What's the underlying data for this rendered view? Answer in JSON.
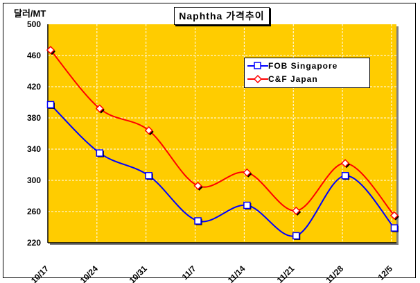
{
  "chart_data": {
    "type": "line",
    "title": "Naphtha 가격추이",
    "ylabel": "달러/MT",
    "xlabel": "",
    "categories": [
      "10/17",
      "10/24",
      "10/31",
      "11/7",
      "11/14",
      "11/21",
      "11/28",
      "12/5"
    ],
    "ylim": [
      220,
      500
    ],
    "yticks": [
      220,
      260,
      300,
      340,
      380,
      420,
      460,
      500
    ],
    "grid": true,
    "legend_position": "top-right",
    "background_color": "#FFCC00",
    "series": [
      {
        "name": "FOB Singapore",
        "color": "#0000FF",
        "marker": "square",
        "values": [
          397,
          335,
          306,
          248,
          268,
          229,
          306,
          239
        ]
      },
      {
        "name": "C&F Japan",
        "color": "#FF0000",
        "marker": "diamond",
        "values": [
          467,
          392,
          364,
          293,
          310,
          261,
          322,
          255
        ]
      }
    ]
  }
}
